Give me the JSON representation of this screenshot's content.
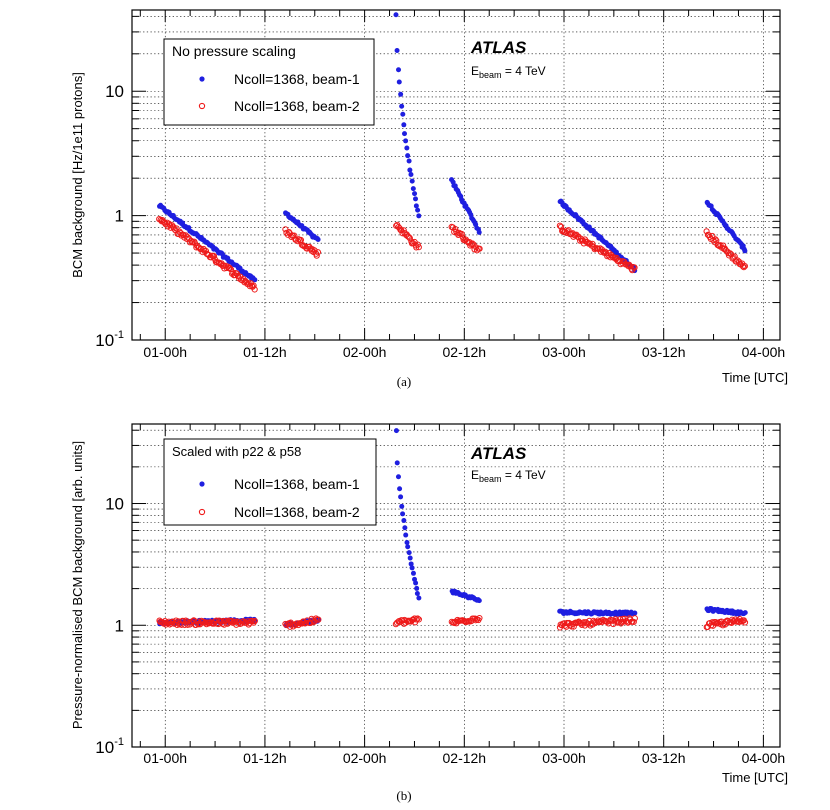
{
  "colors": {
    "beam1": "#1f1fe0",
    "beam2": "#ee1b1b",
    "axis": "#000000",
    "grid": "#000000"
  },
  "chart_data": [
    {
      "type": "scatter",
      "panel_label": "(a)",
      "title": "",
      "xlabel": "Time [UTC]",
      "ylabel": "BCM background [Hz/1e11 protons]",
      "yscale": "log",
      "ylim": [
        0.1,
        45
      ],
      "xlim_hours": [
        -4,
        74
      ],
      "grid": true,
      "x_tick_labels": [
        "01-00h",
        "01-12h",
        "02-00h",
        "02-12h",
        "03-00h",
        "03-12h",
        "04-00h"
      ],
      "x_tick_hours": [
        0,
        12,
        24,
        36,
        48,
        60,
        72
      ],
      "y_tick_labels": [
        {
          "base": "10",
          "exp": "-1",
          "value": 0.1
        },
        {
          "base": "1",
          "exp": "",
          "value": 1
        },
        {
          "base": "10",
          "exp": "",
          "value": 10
        }
      ],
      "legend": {
        "position": "top-left",
        "header": "No pressure scaling",
        "entries": [
          {
            "label": "Ncoll=1368, beam-1",
            "series": 0
          },
          {
            "label": "Ncoll=1368, beam-2",
            "series": 1
          }
        ]
      },
      "annotation": {
        "experiment": "ATLAS",
        "energy_main": "E",
        "energy_sub": "beam",
        "energy_value": " = 4 TeV"
      },
      "series": [
        {
          "name": "Ncoll=1368, beam-1",
          "marker": "filled-circle",
          "color_key": "beam1",
          "segments": [
            {
              "x_start": -0.7,
              "x_end": 10.8,
              "y_start": 1.2,
              "y_end": 0.3
            },
            {
              "x_start": 14.5,
              "x_end": 18.4,
              "y_start": 1.05,
              "y_end": 0.63
            },
            {
              "x_start": 27.8,
              "x_end": 30.5,
              "y_start": 42,
              "y_end": 1.0
            },
            {
              "x_start": 34.5,
              "x_end": 37.8,
              "y_start": 1.9,
              "y_end": 0.75
            },
            {
              "x_start": 47.5,
              "x_end": 56.5,
              "y_start": 1.3,
              "y_end": 0.37
            },
            {
              "x_start": 65.2,
              "x_end": 69.8,
              "y_start": 1.3,
              "y_end": 0.53
            }
          ]
        },
        {
          "name": "Ncoll=1368, beam-2",
          "marker": "open-circle",
          "color_key": "beam2",
          "segments": [
            {
              "x_start": -0.7,
              "x_end": 10.8,
              "y_start": 0.95,
              "y_end": 0.26
            },
            {
              "x_start": 14.5,
              "x_end": 18.4,
              "y_start": 0.75,
              "y_end": 0.49
            },
            {
              "x_start": 27.8,
              "x_end": 30.5,
              "y_start": 0.85,
              "y_end": 0.55
            },
            {
              "x_start": 34.5,
              "x_end": 37.8,
              "y_start": 0.8,
              "y_end": 0.52
            },
            {
              "x_start": 47.5,
              "x_end": 56.5,
              "y_start": 0.8,
              "y_end": 0.37
            },
            {
              "x_start": 65.2,
              "x_end": 69.8,
              "y_start": 0.72,
              "y_end": 0.38
            }
          ]
        }
      ]
    },
    {
      "type": "scatter",
      "panel_label": "(b)",
      "title": "",
      "xlabel": "Time [UTC]",
      "ylabel": "Pressure-normalised BCM background [arb. units]",
      "yscale": "log",
      "ylim": [
        0.1,
        45
      ],
      "xlim_hours": [
        -4,
        74
      ],
      "grid": true,
      "x_tick_labels": [
        "01-00h",
        "01-12h",
        "02-00h",
        "02-12h",
        "03-00h",
        "03-12h",
        "04-00h"
      ],
      "x_tick_hours": [
        0,
        12,
        24,
        36,
        48,
        60,
        72
      ],
      "y_tick_labels": [
        {
          "base": "10",
          "exp": "-1",
          "value": 0.1
        },
        {
          "base": "1",
          "exp": "",
          "value": 1
        },
        {
          "base": "10",
          "exp": "",
          "value": 10
        }
      ],
      "legend": {
        "position": "top-left",
        "header": "Scaled with p22 & p58",
        "entries": [
          {
            "label": "Ncoll=1368, beam-1",
            "series": 0
          },
          {
            "label": "Ncoll=1368, beam-2",
            "series": 1
          }
        ]
      },
      "annotation": {
        "experiment": "ATLAS",
        "energy_main": "E",
        "energy_sub": "beam",
        "energy_value": " = 4 TeV"
      },
      "series": [
        {
          "name": "Ncoll=1368, beam-1",
          "marker": "filled-circle",
          "color_key": "beam1",
          "segments": [
            {
              "x_start": -0.7,
              "x_end": 10.8,
              "y_start": 1.05,
              "y_end": 1.1
            },
            {
              "x_start": 14.5,
              "x_end": 18.4,
              "y_start": 1.0,
              "y_end": 1.1
            },
            {
              "x_start": 27.8,
              "x_end": 30.5,
              "y_start": 40,
              "y_end": 1.7
            },
            {
              "x_start": 34.5,
              "x_end": 37.8,
              "y_start": 1.9,
              "y_end": 1.6
            },
            {
              "x_start": 47.5,
              "x_end": 56.5,
              "y_start": 1.28,
              "y_end": 1.25
            },
            {
              "x_start": 65.2,
              "x_end": 69.8,
              "y_start": 1.35,
              "y_end": 1.25
            }
          ]
        },
        {
          "name": "Ncoll=1368, beam-2",
          "marker": "open-circle",
          "color_key": "beam2",
          "segments": [
            {
              "x_start": -0.7,
              "x_end": 10.8,
              "y_start": 1.05,
              "y_end": 1.05
            },
            {
              "x_start": 14.5,
              "x_end": 18.4,
              "y_start": 1.0,
              "y_end": 1.1
            },
            {
              "x_start": 27.8,
              "x_end": 30.5,
              "y_start": 1.05,
              "y_end": 1.1
            },
            {
              "x_start": 34.5,
              "x_end": 37.8,
              "y_start": 1.05,
              "y_end": 1.15
            },
            {
              "x_start": 47.5,
              "x_end": 56.5,
              "y_start": 1.0,
              "y_end": 1.1
            },
            {
              "x_start": 65.2,
              "x_end": 69.8,
              "y_start": 1.0,
              "y_end": 1.1
            }
          ]
        }
      ]
    }
  ]
}
